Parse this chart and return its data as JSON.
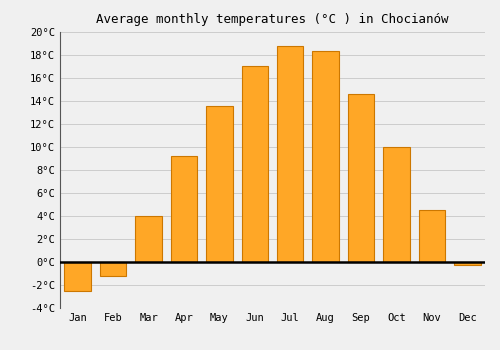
{
  "title": "Average monthly temperatures (°C ) in Chocianów",
  "months": [
    "Jan",
    "Feb",
    "Mar",
    "Apr",
    "May",
    "Jun",
    "Jul",
    "Aug",
    "Sep",
    "Oct",
    "Nov",
    "Dec"
  ],
  "values": [
    -2.5,
    -1.2,
    4.0,
    9.2,
    13.5,
    17.0,
    18.7,
    18.3,
    14.6,
    10.0,
    4.5,
    -0.3
  ],
  "bar_color": "#FFA726",
  "bar_edge_color": "#CC7700",
  "ylim": [
    -4,
    20
  ],
  "yticks": [
    -4,
    -2,
    0,
    2,
    4,
    6,
    8,
    10,
    12,
    14,
    16,
    18,
    20
  ],
  "background_color": "#f0f0f0",
  "grid_color": "#cccccc",
  "title_fontsize": 9,
  "tick_fontsize": 7.5,
  "zero_line_color": "#000000",
  "spine_color": "#555555"
}
